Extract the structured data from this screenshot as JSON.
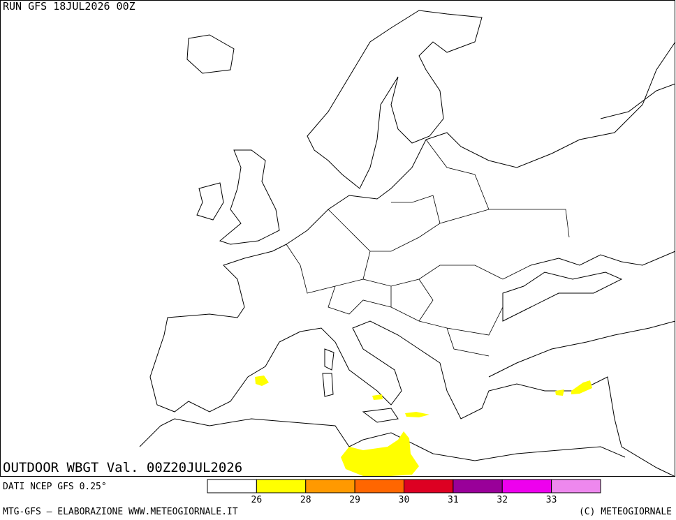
{
  "header": {
    "run": "RUN GFS 18JUL2026 00Z"
  },
  "map": {
    "title": "OUTDOOR WBGT Val. 00Z20JUL2026"
  },
  "legend": {
    "source": "DATI NCEP GFS 0.25°",
    "colors": [
      "#ffffff",
      "#ffff00",
      "#ff9900",
      "#ff6600",
      "#dd0022",
      "#990099",
      "#ee00ee",
      "#ee88ee"
    ],
    "thresholds": [
      26,
      28,
      29,
      30,
      31,
      32,
      33
    ]
  },
  "footer": {
    "credit": "MTG-GFS — ELABORAZIONE WWW.METEOGIORNALE.IT",
    "copyright": "(C) METEOGIORNALE"
  }
}
